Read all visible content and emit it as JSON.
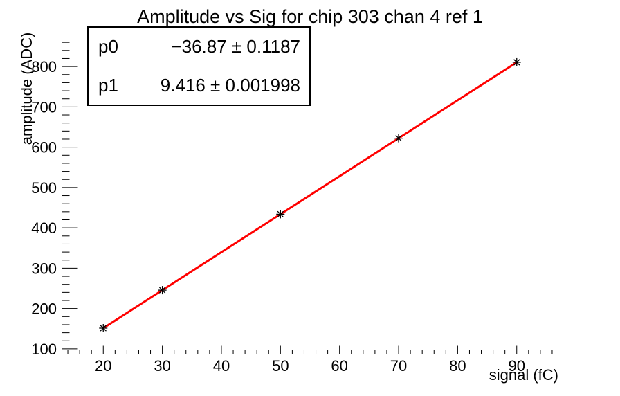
{
  "chart_data": {
    "type": "scatter",
    "title": "Amplitude vs Sig for chip 303 chan 4 ref 1",
    "xlabel": "signal (fC)",
    "ylabel": "amplitude (ADC)",
    "xlim": [
      13,
      97
    ],
    "ylim": [
      87,
      868
    ],
    "x_major_ticks": [
      20,
      30,
      40,
      50,
      60,
      70,
      80,
      90
    ],
    "x_minor_step": 2,
    "y_major_ticks": [
      100,
      200,
      300,
      400,
      500,
      600,
      700,
      800
    ],
    "y_minor_step": 20,
    "grid": false,
    "legend": false,
    "points": {
      "x": [
        20,
        30,
        50,
        70,
        90
      ],
      "y": [
        151.4,
        245.6,
        433.9,
        622.3,
        810.6
      ]
    },
    "marker": "asterisk",
    "marker_color": "#000000",
    "fit": {
      "type": "linear",
      "p0": -36.87,
      "p1": 9.416,
      "x_range": [
        20,
        90
      ],
      "line_color": "#ff0000",
      "line_width": 3
    }
  },
  "stats": {
    "rows": [
      {
        "label": "p0",
        "value": "−36.87 ± 0.1187"
      },
      {
        "label": "p1",
        "value": "9.416 ± 0.001998"
      }
    ]
  }
}
